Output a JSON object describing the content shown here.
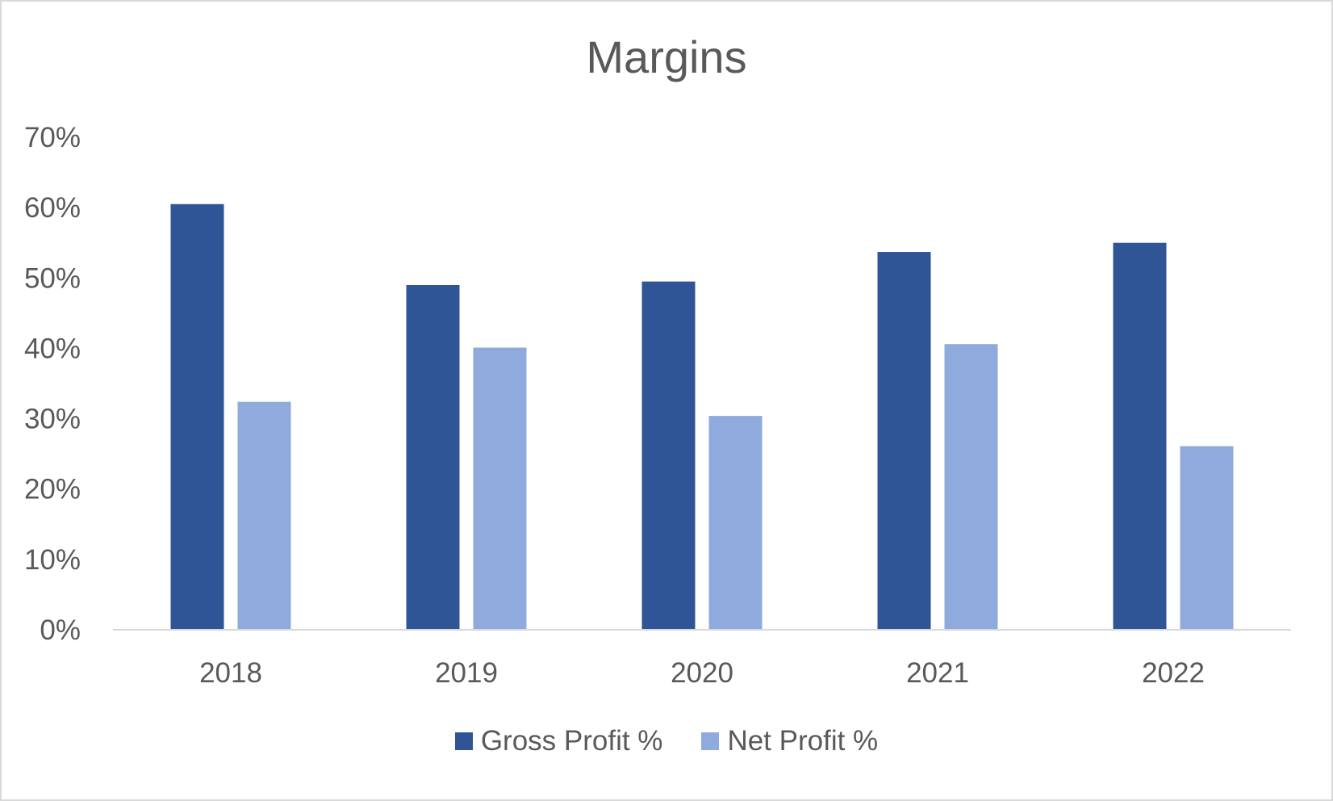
{
  "chart_data": {
    "type": "bar",
    "title": "Margins",
    "categories": [
      "2018",
      "2019",
      "2020",
      "2021",
      "2022"
    ],
    "series": [
      {
        "name": "Gross Profit %",
        "color": "#2f5597",
        "values": [
          60.5,
          49.0,
          49.5,
          53.7,
          55.0
        ]
      },
      {
        "name": "Net Profit %",
        "color": "#8faadc",
        "values": [
          32.4,
          40.1,
          30.4,
          40.6,
          26.1
        ]
      }
    ],
    "ylim": [
      0,
      70
    ],
    "yticks": [
      "0%",
      "10%",
      "20%",
      "30%",
      "40%",
      "50%",
      "60%",
      "70%"
    ],
    "grid": false,
    "legend_position": "bottom"
  }
}
